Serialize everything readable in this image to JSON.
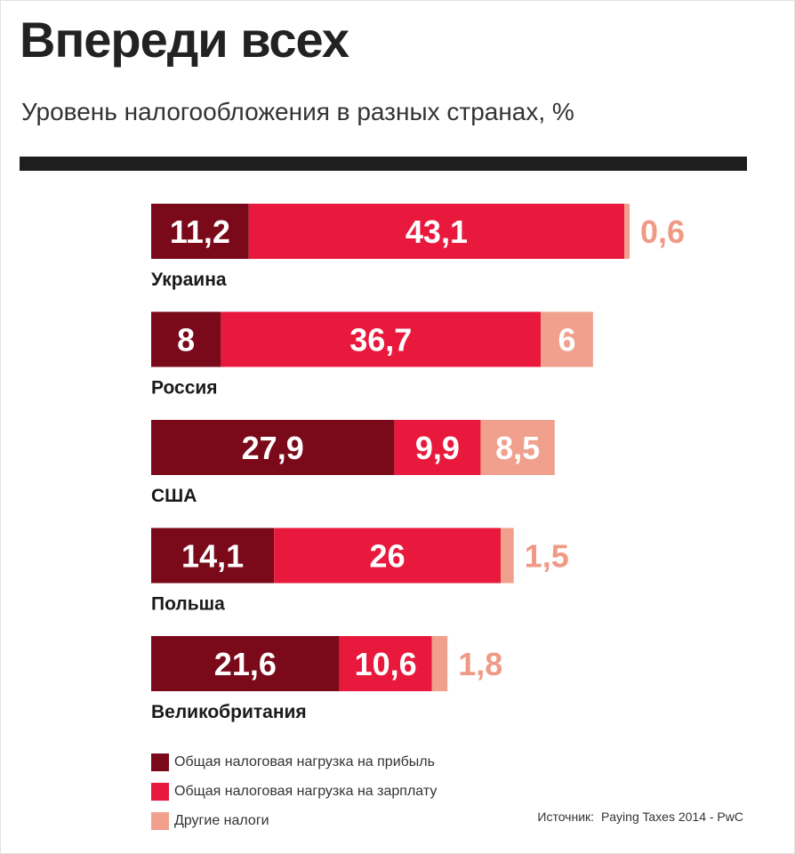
{
  "header": {
    "title": "Впереди всех",
    "subtitle": "Уровень налогообложения в разных странах, %"
  },
  "chart_data": {
    "type": "bar",
    "orientation": "horizontal",
    "stacked": true,
    "title": "Впереди всех",
    "subtitle": "Уровень налогообложения в разных странах, %",
    "xlabel": "",
    "ylabel": "",
    "categories": [
      "Украина",
      "Россия",
      "США",
      "Польша",
      "Великобритания"
    ],
    "series": [
      {
        "name": "Общая налоговая нагрузка на прибыль",
        "color": "#7a0a1a",
        "values": [
          11.2,
          8,
          27.9,
          14.1,
          21.6
        ],
        "labels": [
          "11,2",
          "8",
          "27,9",
          "14,1",
          "21,6"
        ]
      },
      {
        "name": "Общая налоговая нагрузка на зарплату",
        "color": "#e8193c",
        "values": [
          43.1,
          36.7,
          9.9,
          26,
          10.6
        ],
        "labels": [
          "43,1",
          "36,7",
          "9,9",
          "26",
          "10,6"
        ]
      },
      {
        "name": "Другие налоги",
        "color": "#f0a08c",
        "values": [
          0.6,
          6,
          8.5,
          1.5,
          1.8
        ],
        "labels": [
          "0,6",
          "6",
          "8,5",
          "1,5",
          "1,8"
        ]
      }
    ],
    "legend_position": "bottom-left"
  },
  "legend": {
    "items": [
      {
        "label": "Общая налоговая нагрузка на прибыль",
        "color": "#7a0a1a"
      },
      {
        "label": "Общая налоговая нагрузка на зарплату",
        "color": "#e8193c"
      },
      {
        "label": "Другие налоги",
        "color": "#f0a08c"
      }
    ]
  },
  "source": {
    "label": "Источник:",
    "text": "Paying Taxes 2014 - PwC"
  }
}
